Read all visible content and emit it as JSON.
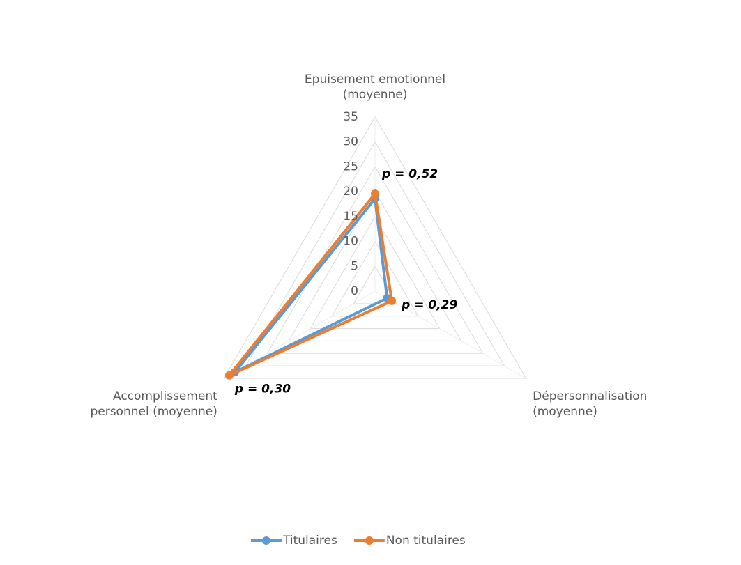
{
  "chart_data": {
    "type": "radar",
    "categories": [
      "Epuisement emotionnel\n(moyenne)",
      "Dépersonnalisation\n(moyenne)",
      "Accomplissement\npersonnel (moyenne)"
    ],
    "series": [
      {
        "name": "Titulaires",
        "color": "#5b9bd5",
        "values": [
          18.6,
          2.8,
          32.5
        ]
      },
      {
        "name": "Non titulaires",
        "color": "#ed7d31",
        "values": [
          19.6,
          3.9,
          33.8
        ]
      }
    ],
    "annotations": [
      "p = 0,52",
      "p = 0,29",
      "p = 0,30"
    ],
    "ylim": [
      0,
      35
    ],
    "yticks": [
      0,
      5,
      10,
      15,
      20,
      25,
      30,
      35
    ],
    "grid": true,
    "legend": "bottom"
  }
}
